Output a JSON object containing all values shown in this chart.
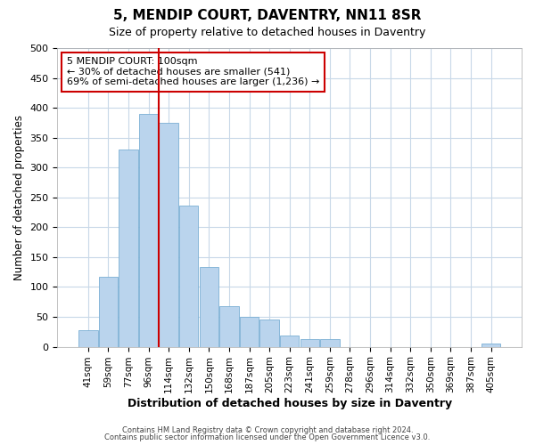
{
  "title": "5, MENDIP COURT, DAVENTRY, NN11 8SR",
  "subtitle": "Size of property relative to detached houses in Daventry",
  "xlabel": "Distribution of detached houses by size in Daventry",
  "ylabel": "Number of detached properties",
  "bar_labels": [
    "41sqm",
    "59sqm",
    "77sqm",
    "96sqm",
    "114sqm",
    "132sqm",
    "150sqm",
    "168sqm",
    "187sqm",
    "205sqm",
    "223sqm",
    "241sqm",
    "259sqm",
    "278sqm",
    "296sqm",
    "314sqm",
    "332sqm",
    "350sqm",
    "369sqm",
    "387sqm",
    "405sqm"
  ],
  "bar_values": [
    28,
    117,
    330,
    390,
    375,
    237,
    133,
    68,
    50,
    46,
    19,
    13,
    13,
    0,
    0,
    0,
    0,
    0,
    0,
    0,
    5
  ],
  "bar_color": "#bad4ed",
  "bar_edge_color": "#7aafd4",
  "reference_line_color": "#cc0000",
  "annotation_text": "5 MENDIP COURT: 100sqm\n← 30% of detached houses are smaller (541)\n69% of semi-detached houses are larger (1,236) →",
  "annotation_box_color": "#ffffff",
  "annotation_box_edge_color": "#cc0000",
  "ylim": [
    0,
    500
  ],
  "yticks": [
    0,
    50,
    100,
    150,
    200,
    250,
    300,
    350,
    400,
    450,
    500
  ],
  "footer_line1": "Contains HM Land Registry data © Crown copyright and database right 2024.",
  "footer_line2": "Contains public sector information licensed under the Open Government Licence v3.0.",
  "bg_color": "#ffffff",
  "grid_color": "#c8d8e8",
  "ref_line_x": 3.5
}
